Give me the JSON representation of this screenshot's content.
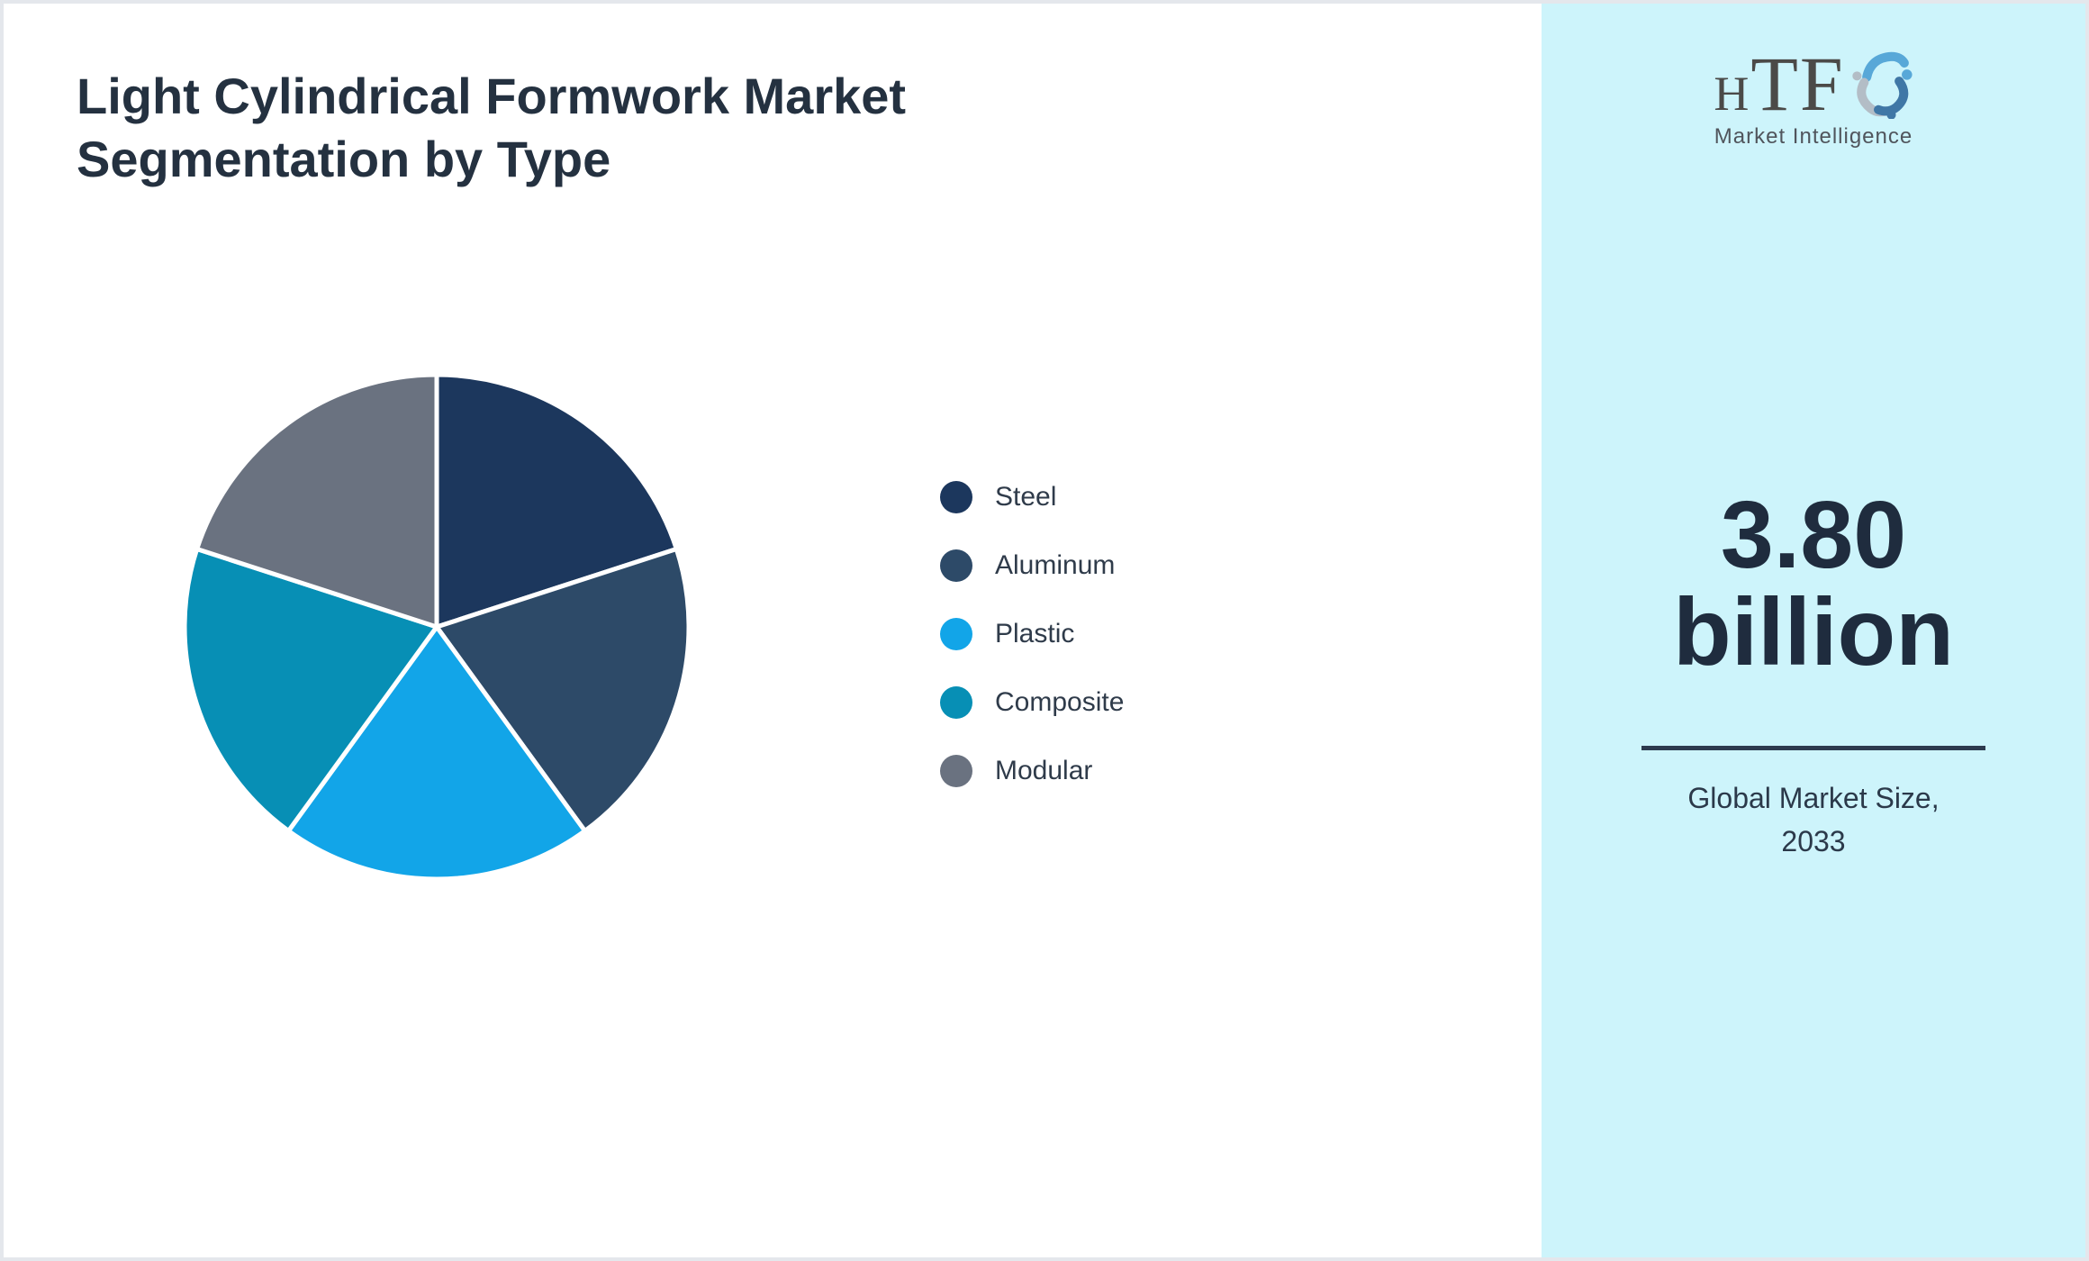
{
  "page": {
    "title_line1": "Light Cylindrical Formwork Market",
    "title_line2": "Segmentation by Type"
  },
  "chart_data": {
    "type": "pie",
    "title": "Light Cylindrical Formwork Market Segmentation by Type",
    "labels": [
      "Steel",
      "Aluminum",
      "Plastic",
      "Composite",
      "Modular"
    ],
    "values": [
      20,
      20,
      20,
      20,
      20
    ],
    "colors": [
      "#1c375d",
      "#2d4a68",
      "#12a5e8",
      "#078fb5",
      "#6a7280"
    ],
    "clockwise_from_top": true,
    "slice_border_color": "#ffffff",
    "legend_position": "right",
    "data_labels_shown": false
  },
  "sidebar": {
    "background": "#cdf4fb",
    "logo": {
      "part1": "H",
      "part2": "TF",
      "subtitle": "Market Intelligence",
      "text_color": "#4b4a48",
      "dolphin_light_blue": "#58a8d8",
      "dolphin_gray": "#b3bdc6",
      "dolphin_steel_blue": "#3f77a6"
    },
    "market_size_value": "3.80",
    "market_size_unit": "billion",
    "divider_color": "#2c3a4e",
    "caption_line1": "Global Market Size,",
    "caption_line2": "2033"
  }
}
